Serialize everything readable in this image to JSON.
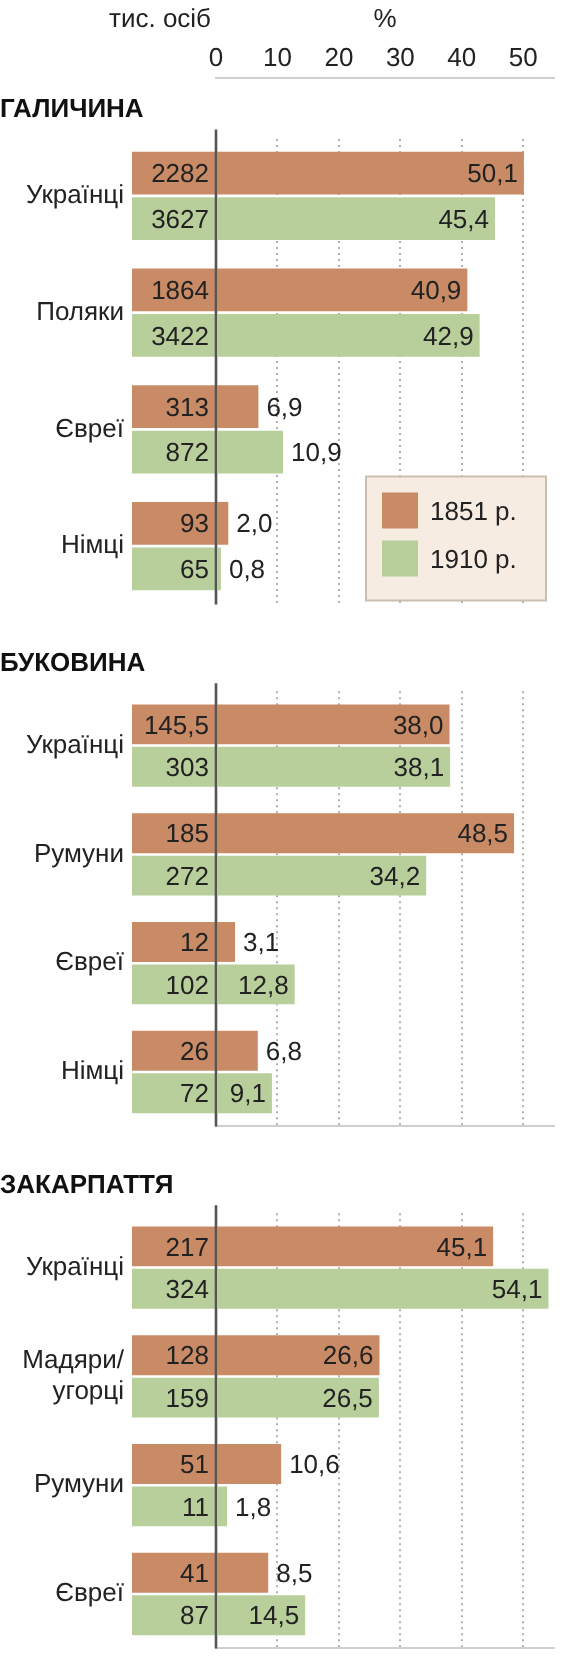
{
  "chart_data": [
    {
      "type": "bar",
      "orientation": "horizontal",
      "title": "ГАЛИЧИНА",
      "xlabel": "%",
      "categories": [
        "Українці",
        "Поляки",
        "Євреї",
        "Німці"
      ],
      "series": [
        {
          "name": "1851 р.",
          "color": "#c98a66",
          "values": [
            50.1,
            40.9,
            6.9,
            2.0
          ],
          "value_labels": [
            "50,1",
            "40,9",
            "6,9",
            "2,0"
          ]
        },
        {
          "name": "1910 р.",
          "color": "#b8cf9c",
          "values": [
            45.4,
            42.9,
            10.9,
            0.8
          ],
          "value_labels": [
            "45,4",
            "42,9",
            "10,9",
            "0,8"
          ]
        }
      ],
      "xlim": [
        0,
        55
      ],
      "xticks": [
        0,
        10,
        20,
        30,
        40,
        50
      ],
      "grid": "x",
      "legend": "bottom right",
      "ref_lines": [
        {
          "axis": "x",
          "value": 0,
          "color": "#555555"
        }
      ],
      "annotations": [
        "тис. осіб",
        "2282",
        "3627",
        "1864",
        "3422",
        "313",
        "872",
        "93",
        "65"
      ]
    },
    {
      "type": "bar",
      "orientation": "horizontal",
      "title": "БУКОВИНА",
      "categories": [
        "Українці",
        "Румуни",
        "Євреї",
        "Німці"
      ],
      "series": [
        {
          "color": "#c98a66",
          "values": [
            38.0,
            48.5,
            3.1,
            6.8
          ],
          "value_labels": [
            "38,0",
            "48,5",
            "3,1",
            "6,8"
          ]
        },
        {
          "color": "#b8cf9c",
          "values": [
            38.1,
            34.2,
            12.8,
            9.1
          ],
          "value_labels": [
            "38,1",
            "34,2",
            "12,8",
            "9,1"
          ]
        }
      ],
      "xlim": [
        0,
        55
      ],
      "xticks": [
        0,
        10,
        20,
        30,
        40,
        50
      ],
      "grid": "x",
      "tick_labels": "y",
      "ref_lines": [
        {
          "axis": "x",
          "value": 0,
          "color": "#555555"
        }
      ],
      "annotations": [
        "145,5",
        "303",
        "185",
        "272",
        "12",
        "102",
        "26",
        "72"
      ]
    },
    {
      "type": "bar",
      "orientation": "horizontal",
      "title": "ЗАКАРПАТТЯ",
      "categories": [
        "Українці",
        "Мадяри/угорці",
        "Румуни",
        "Євреї"
      ],
      "series": [
        {
          "color": "#c98a66",
          "values": [
            45.1,
            26.6,
            10.6,
            8.5
          ],
          "value_labels": [
            "45,1",
            "26,6",
            "10,6",
            "8,5"
          ]
        },
        {
          "color": "#b8cf9c",
          "values": [
            54.1,
            26.5,
            1.8,
            14.5
          ],
          "value_labels": [
            "54,1",
            "26,5",
            "1,8",
            "14,5"
          ]
        }
      ],
      "xlim": [
        0,
        55
      ],
      "xticks": [
        0,
        10,
        20,
        30,
        40,
        50
      ],
      "grid": "x",
      "tick_labels": "y",
      "ref_lines": [
        {
          "axis": "x",
          "value": 0,
          "color": "#555555"
        }
      ],
      "annotations": [
        "217",
        "324",
        "128",
        "159",
        "51",
        "11",
        "41",
        "87"
      ]
    }
  ]
}
